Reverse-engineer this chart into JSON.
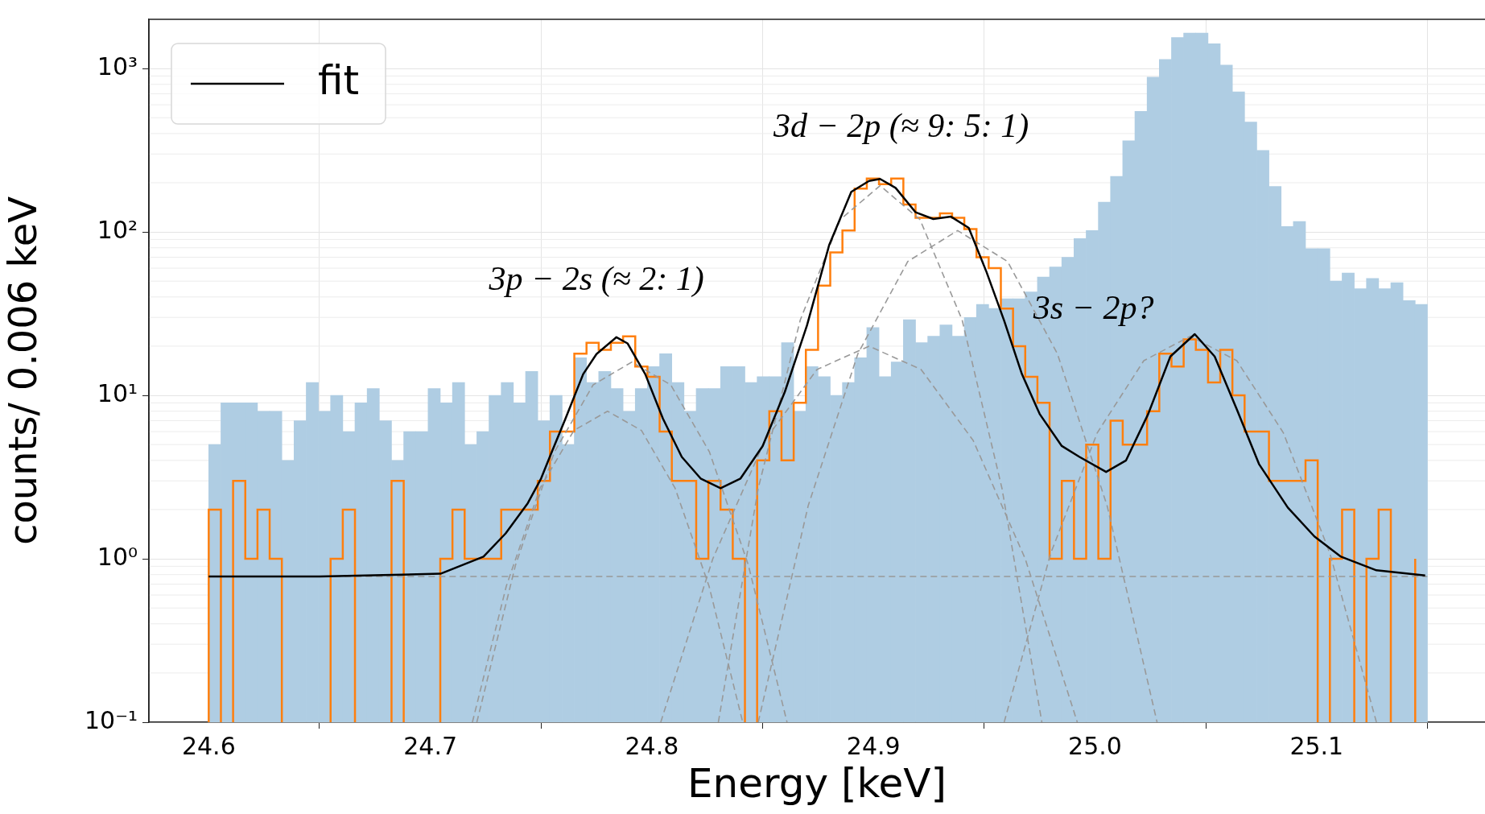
{
  "chart_data": {
    "type": "histogram",
    "xlabel": "Energy [keV]",
    "ylabel": "counts/ 0.006 keV",
    "log": "y",
    "grid": true,
    "legend": "top left",
    "xlim": [
      24.573,
      25.176
    ],
    "ylim": [
      0.1,
      2000
    ],
    "xticks": [
      24.6,
      24.7,
      24.8,
      24.9,
      {
        "value": 25,
        "label": "25.0"
      },
      25.1
    ],
    "yticks": [
      {
        "value": 0.1,
        "label": "10⁻¹"
      },
      {
        "value": 1,
        "label": "10⁰"
      },
      {
        "value": 10,
        "label": "10¹"
      },
      {
        "value": 100,
        "label": "10²"
      },
      {
        "value": 1000,
        "label": "10³"
      }
    ],
    "bins": [
      24.6,
      24.6055,
      24.611,
      24.6165,
      24.622,
      24.6275,
      24.633,
      24.6385,
      24.644,
      24.6495,
      24.655,
      24.6605,
      24.666,
      24.6715,
      24.677,
      24.6825,
      24.688,
      24.6935,
      24.699,
      24.7045,
      24.71,
      24.7155,
      24.721,
      24.7265,
      24.732,
      24.7375,
      24.743,
      24.7485,
      24.754,
      24.7595,
      24.765,
      24.7705,
      24.776,
      24.7815,
      24.787,
      24.7925,
      24.798,
      24.8035,
      24.809,
      24.8145,
      24.82,
      24.8255,
      24.831,
      24.8365,
      24.842,
      24.8475,
      24.853,
      24.8585,
      24.864,
      24.8695,
      24.875,
      24.8805,
      24.886,
      24.8915,
      24.897,
      24.9025,
      24.908,
      24.9135,
      24.919,
      24.9245,
      24.93,
      24.9355,
      24.941,
      24.9465,
      24.952,
      24.9575,
      24.963,
      24.9685,
      24.974,
      24.9795,
      24.985,
      24.9905,
      24.996,
      25.0015,
      25.007,
      25.0125,
      25.018,
      25.0235,
      25.029,
      25.0345,
      25.04,
      25.0455,
      25.051,
      25.0565,
      25.062,
      25.0675,
      25.073,
      25.0785,
      25.084,
      25.0895,
      25.095,
      25.1005,
      25.106,
      25.1115,
      25.117,
      25.1225,
      25.128,
      25.1335,
      25.139,
      25.1445,
      25.15
    ],
    "series": [
      {
        "color": "#afcde3",
        "values": [
          5,
          9,
          9,
          9,
          8,
          8,
          4,
          7,
          12,
          8,
          10,
          6,
          9,
          11,
          7,
          4,
          6,
          6,
          11,
          9,
          12,
          5,
          6,
          10,
          12,
          9,
          14,
          7,
          10,
          5,
          17,
          12,
          14,
          11,
          8,
          11,
          15,
          18,
          12,
          8,
          11,
          11,
          15,
          15,
          12,
          13,
          13,
          21,
          8,
          15,
          13,
          10,
          12,
          17,
          26,
          13,
          16,
          29,
          21,
          23,
          27,
          23,
          30,
          36,
          34,
          39,
          39,
          43,
          53,
          61,
          70,
          91,
          102,
          152,
          219,
          361,
          546,
          885,
          1137,
          1549,
          1650,
          1650,
          1416,
          1050,
          719,
          470,
          315,
          190,
          108,
          116,
          79,
          79,
          50,
          56,
          45,
          52,
          45,
          49,
          38,
          36
        ]
      },
      {
        "type": "step",
        "color": "#ff7f0e",
        "x": [
          24.6,
          24.6055,
          24.611,
          24.6165,
          24.622,
          24.6275,
          24.633,
          24.6385,
          24.644,
          24.6495,
          24.655,
          24.6605,
          24.666,
          24.6715,
          24.677,
          24.6825,
          24.688,
          24.6935,
          24.699,
          24.7045,
          24.71,
          24.7155,
          24.721,
          24.7265,
          24.732,
          24.7375,
          24.743,
          24.7485,
          24.754,
          24.7595,
          24.765,
          24.7705,
          24.776,
          24.7815,
          24.787,
          24.7925,
          24.798,
          24.8035,
          24.809,
          24.8145,
          24.82,
          24.8255,
          24.831,
          24.8365,
          24.842,
          24.8475,
          24.853,
          24.8585,
          24.864,
          24.8695,
          24.875,
          24.8805,
          24.886,
          24.8915,
          24.897,
          24.9025,
          24.908,
          24.9135,
          24.919,
          24.9245,
          24.93,
          24.9355,
          24.941,
          24.9465,
          24.952,
          24.9575,
          24.963,
          24.9685,
          24.974,
          24.9795,
          24.985,
          24.9905,
          24.996,
          25.0015,
          25.007,
          25.0125,
          25.018,
          25.0235,
          25.029,
          25.0345,
          25.04,
          25.0455,
          25.051,
          25.0565,
          25.062,
          25.0675,
          25.073,
          25.0785,
          25.084,
          25.0895,
          25.095,
          25.1005,
          25.106,
          25.1115,
          25.117,
          25.1225,
          25.128,
          25.1335,
          25.139,
          25.1445
        ],
        "values": [
          2,
          null,
          3,
          1,
          2,
          1,
          null,
          null,
          null,
          null,
          1,
          2,
          null,
          null,
          null,
          3,
          null,
          null,
          null,
          1,
          2,
          1,
          1,
          1,
          2,
          2,
          2,
          3,
          6,
          6,
          18,
          21,
          19,
          21,
          23,
          15,
          13,
          6,
          3,
          3,
          1,
          3,
          2,
          1,
          null,
          4,
          8,
          4,
          9,
          19,
          47,
          75,
          102,
          184,
          212,
          196,
          212,
          147,
          122,
          122,
          130,
          122,
          104,
          70,
          60,
          34,
          20,
          13,
          9,
          1,
          3,
          1,
          5,
          1,
          7,
          5,
          5,
          8,
          18,
          15,
          22,
          19,
          12,
          19,
          10,
          6,
          6,
          3,
          3,
          3,
          4,
          null,
          1,
          2,
          null,
          1,
          2,
          null,
          null,
          1
        ]
      },
      {
        "type": "line",
        "color": "#999999",
        "line_style": "dashed",
        "x": [
          24.6,
          25.15
        ],
        "values": [
          0.78,
          0.78
        ]
      },
      {
        "type": "line",
        "color": "#999999",
        "line_style": "dashed",
        "x": [
          24.719,
          24.7343,
          24.7495,
          24.7648,
          24.78,
          24.7953,
          24.8105,
          24.8258,
          24.841
        ],
        "values": [
          0.1,
          0.68,
          2.7,
          6.1,
          8,
          6.1,
          2.7,
          0.68,
          0.1
        ]
      },
      {
        "type": "line",
        "color": "#999999",
        "line_style": "dashed",
        "x": [
          24.721,
          24.7385,
          24.756,
          24.7735,
          24.791,
          24.8085,
          24.826,
          24.8435,
          24.861
        ],
        "values": [
          0.1,
          0.92,
          4.5,
          11.6,
          16,
          11.6,
          4.5,
          0.92,
          0.1
        ]
      },
      {
        "type": "line",
        "color": "#999999",
        "line_style": "dashed",
        "x": [
          24.804,
          24.8275,
          24.851,
          24.8745,
          24.898,
          24.9215,
          24.945,
          24.9685,
          24.992
        ],
        "values": [
          0.1,
          1,
          5.3,
          14.4,
          20,
          14.4,
          5.3,
          1,
          0.1
        ]
      },
      {
        "type": "line",
        "color": "#999999",
        "line_style": "dashed",
        "x": [
          24.83,
          24.848,
          24.867,
          24.885,
          24.903,
          24.921,
          24.94,
          24.958,
          24.976
        ],
        "values": [
          0.1,
          2.7,
          29,
          119,
          192,
          119,
          29,
          2.7,
          0.1
        ]
      },
      {
        "type": "line",
        "color": "#999999",
        "line_style": "dashed",
        "x": [
          24.848,
          24.8705,
          24.893,
          24.9155,
          24.938,
          24.9605,
          24.983,
          25.0055,
          25.028
        ],
        "values": [
          0.1,
          2.1,
          18,
          66,
          102,
          66,
          18,
          2.1,
          0.1
        ]
      },
      {
        "type": "line",
        "color": "#999999",
        "line_style": "dashed",
        "x": [
          24.959,
          24.98,
          25.001,
          25.022,
          25.043,
          25.064,
          25.085,
          25.106,
          25.127
        ],
        "values": [
          0.1,
          1.08,
          5.9,
          16.3,
          23,
          16.3,
          5.9,
          1.08,
          0.1
        ]
      },
      {
        "name": "fit",
        "type": "line",
        "color": "#000000",
        "x": [
          24.6,
          24.65,
          24.7046,
          24.724,
          24.734,
          24.744,
          24.75,
          24.7545,
          24.761,
          24.769,
          24.775,
          24.784,
          24.789,
          24.797,
          24.805,
          24.8135,
          24.822,
          24.831,
          24.84,
          24.85,
          24.86,
          24.87,
          24.88,
          24.89,
          24.898,
          24.903,
          24.91,
          24.919,
          24.927,
          24.935,
          24.943,
          24.951,
          24.959,
          24.967,
          24.975,
          24.985,
          24.993,
          25.005,
          25.014,
          25.024,
          25.034,
          25.045,
          25.054,
          25.064,
          25.074,
          25.087,
          25.099,
          25.111,
          25.127,
          25.149
        ],
        "values": [
          0.78,
          0.78,
          0.81,
          1.03,
          1.43,
          2.19,
          3.1,
          4.4,
          7.2,
          13.5,
          17.9,
          22.7,
          20.8,
          13.5,
          7.2,
          4.2,
          3.1,
          2.7,
          3.1,
          4.9,
          10.5,
          26.8,
          83,
          176,
          205,
          211,
          186,
          132,
          120,
          124,
          106,
          57,
          28.6,
          13.5,
          7.7,
          4.9,
          4.2,
          3.4,
          4,
          7.7,
          17.3,
          23.7,
          17.3,
          8.2,
          3.8,
          2.06,
          1.37,
          1.03,
          0.85,
          0.79
        ]
      }
    ],
    "annotations": [
      "3p − 2s (≈ 2: 1)",
      "3d − 2p (≈ 9: 5: 1)",
      "3s − 2p?"
    ]
  }
}
